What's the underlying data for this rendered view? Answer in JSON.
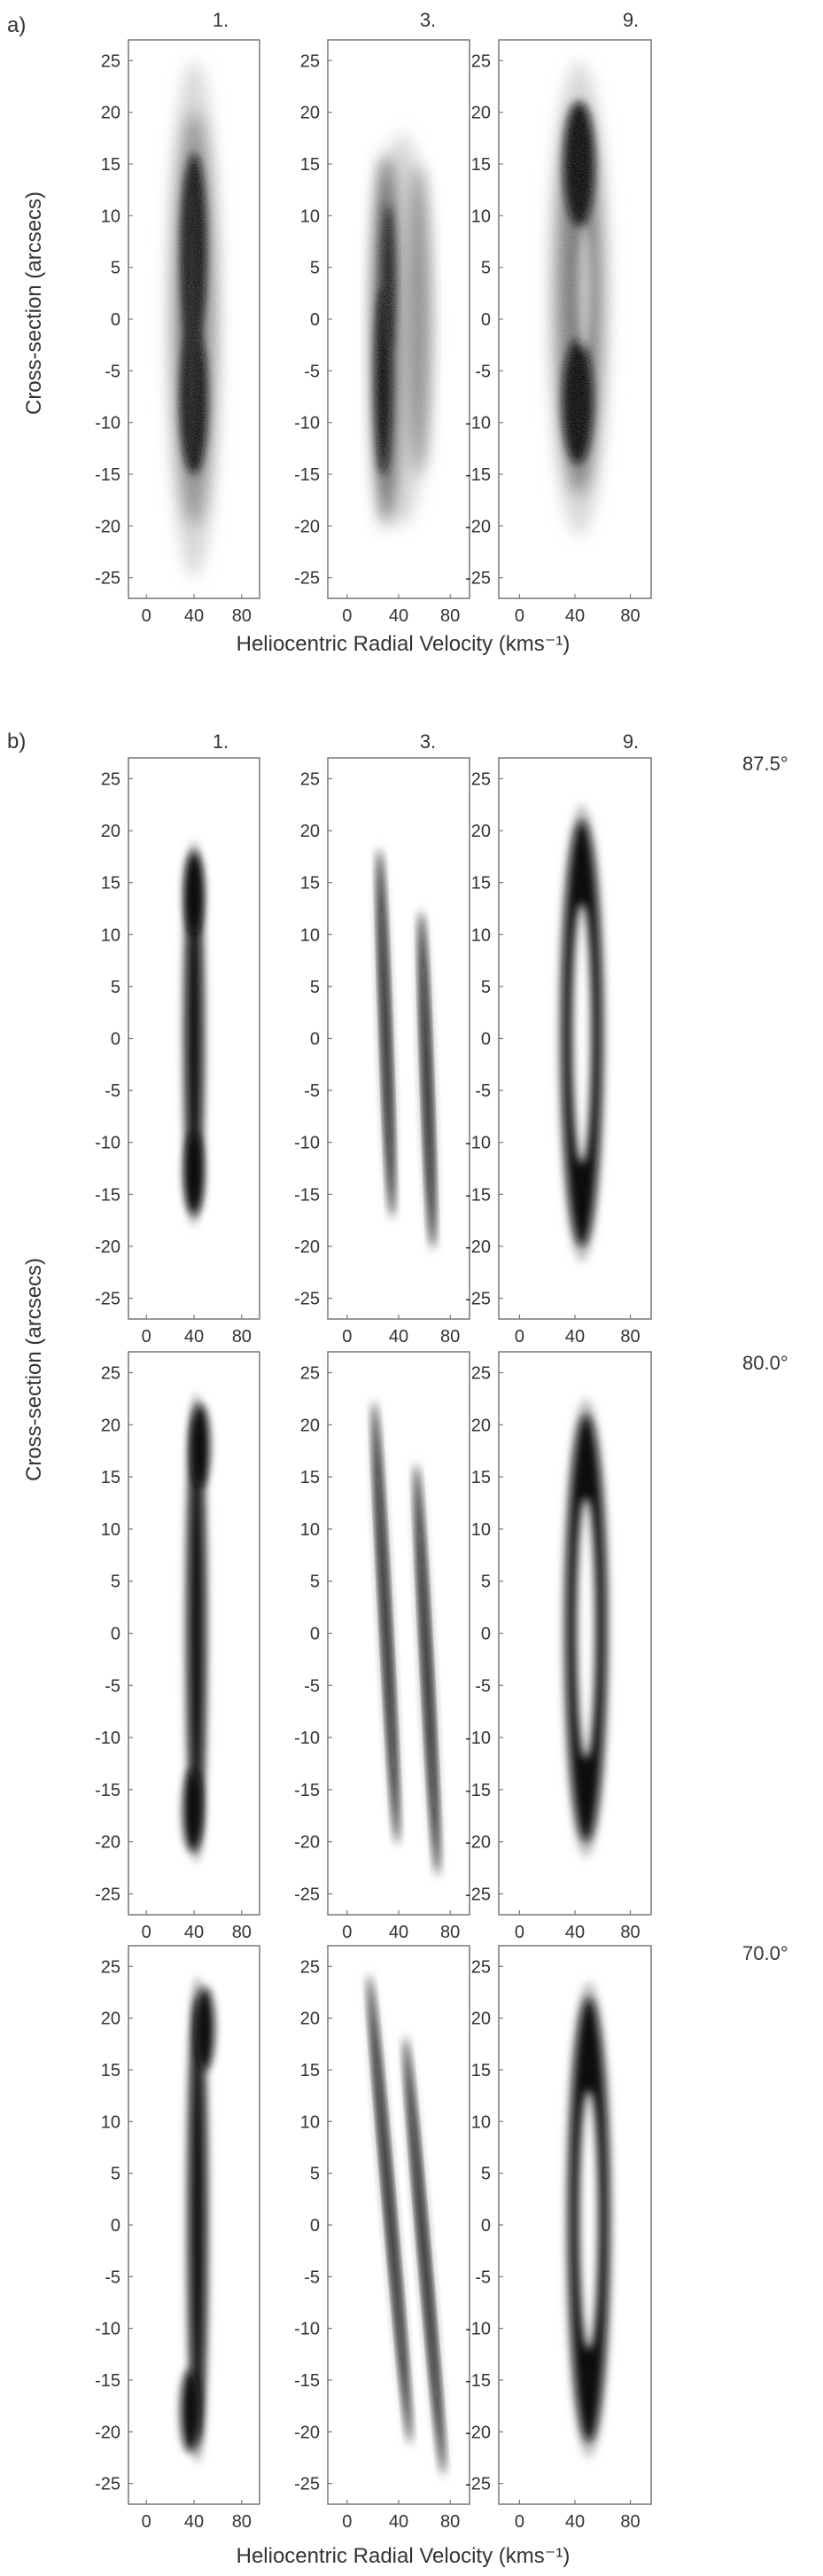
{
  "figure": {
    "panel_a": {
      "letter": "a)",
      "ylabel": "Cross-section (arcsecs)",
      "xlabel": "Heliocentric Radial Velocity (kms⁻¹)",
      "columns": [
        "1.",
        "3.",
        "9."
      ]
    },
    "panel_b": {
      "letter": "b)",
      "ylabel": "Cross-section (arcsecs)",
      "xlabel": "Heliocentric Radial Velocity (kms⁻¹)",
      "columns": [
        "1.",
        "3.",
        "9."
      ],
      "rows": [
        {
          "inclination": "87.5°"
        },
        {
          "inclination": "80.0°"
        },
        {
          "inclination": "70.0°"
        }
      ]
    }
  },
  "chart_data": [
    {
      "type": "heatmap",
      "title": "",
      "subplots": [
        "1.",
        "3.",
        "9."
      ],
      "xlabel": "Heliocentric Radial Velocity (kms⁻¹)",
      "ylabel": "Cross-section (arcsecs)",
      "xlim": [
        -15,
        95
      ],
      "ylim": [
        -27,
        27
      ],
      "xticks": [
        0,
        40,
        80
      ],
      "yticks": [
        -25,
        -20,
        -15,
        -10,
        -5,
        0,
        5,
        10,
        15,
        20,
        25
      ],
      "kind": "observed position-velocity arrays",
      "features": [
        {
          "subplot": "1.",
          "velocity_center": 40,
          "extent": [
            -24,
            24
          ],
          "peaks": [
            7,
            -8
          ]
        },
        {
          "subplot": "3.",
          "velocity_centers": [
            30,
            55
          ],
          "extent": [
            -20,
            17
          ]
        },
        {
          "subplot": "9.",
          "velocity_center": 43,
          "extent": [
            -20,
            24
          ],
          "shape": "ring",
          "peaks": [
            15,
            -8
          ]
        }
      ]
    },
    {
      "type": "heatmap",
      "title": "",
      "subplots": [
        "1.",
        "3.",
        "9."
      ],
      "rows": [
        "87.5°",
        "80.0°",
        "70.0°"
      ],
      "xlabel": "Heliocentric Radial Velocity (kms⁻¹)",
      "ylabel": "Cross-section (arcsecs)",
      "xlim": [
        -15,
        95
      ],
      "ylim": [
        -27,
        27
      ],
      "xticks": [
        0,
        40,
        80
      ],
      "yticks": [
        -25,
        -20,
        -15,
        -10,
        -5,
        0,
        5,
        10,
        15,
        20,
        25
      ],
      "kind": "model position-velocity arrays",
      "features": [
        {
          "row": "87.5°",
          "subplot": "1.",
          "velocity_center": 40,
          "extent": [
            -17,
            18
          ]
        },
        {
          "row": "87.5°",
          "subplot": "3.",
          "velocity_centers": [
            30,
            62
          ],
          "extent": [
            -20,
            18
          ]
        },
        {
          "row": "87.5°",
          "subplot": "9.",
          "velocity_center": 45,
          "shape": "ring",
          "outer": [
            -20,
            21
          ],
          "inner": [
            -12,
            13
          ]
        },
        {
          "row": "80.0°",
          "subplot": "1.",
          "velocity_center": 42,
          "extent": [
            -21,
            22
          ]
        },
        {
          "row": "80.0°",
          "subplot": "3.",
          "velocity_centers": [
            30,
            62
          ],
          "extent": [
            -23,
            22
          ]
        },
        {
          "row": "80.0°",
          "subplot": "9.",
          "velocity_center": 48,
          "shape": "ring",
          "outer": [
            -20,
            21
          ],
          "inner": [
            -12,
            13
          ]
        },
        {
          "row": "70.0°",
          "subplot": "1.",
          "velocity_center": 43,
          "extent": [
            -22,
            23
          ]
        },
        {
          "row": "70.0°",
          "subplot": "3.",
          "velocity_centers": [
            33,
            60
          ],
          "extent": [
            -24,
            24
          ]
        },
        {
          "row": "70.0°",
          "subplot": "9.",
          "velocity_center": 50,
          "shape": "ring",
          "outer": [
            -21,
            22
          ],
          "inner": [
            -12,
            13
          ]
        }
      ]
    }
  ]
}
